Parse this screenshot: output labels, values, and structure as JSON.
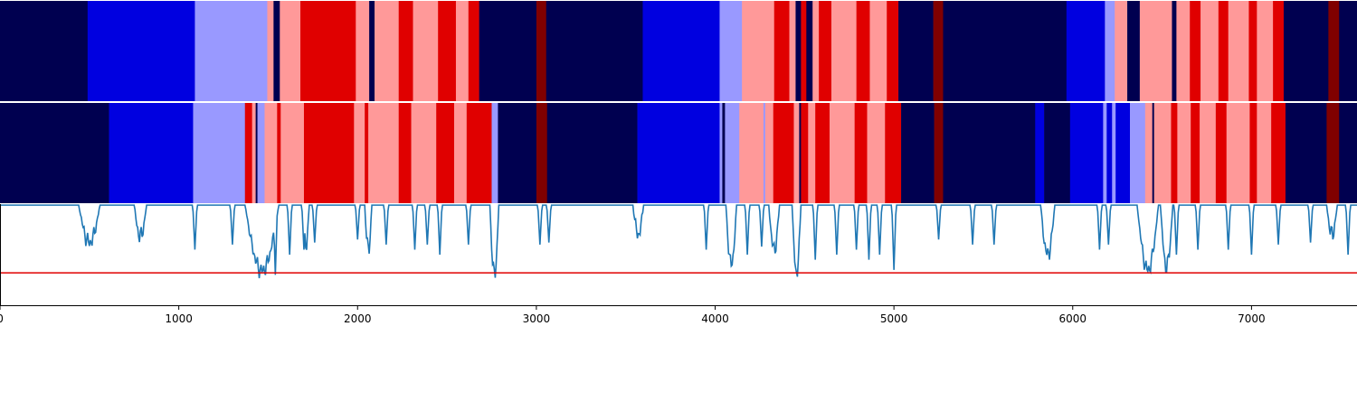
{
  "chart_data": {
    "type": "segmentation-comparison",
    "x_range": [
      0,
      7590
    ],
    "x_ticks": [
      0,
      1000,
      2000,
      3000,
      4000,
      5000,
      6000,
      7000
    ],
    "palette": {
      "0": "#000050",
      "1": "#0000e0",
      "2": "#9999ff",
      "3": "#ff9999",
      "4": "#e00000",
      "5": "#800000"
    },
    "panels": [
      {
        "segments": [
          [
            0,
            490,
            0
          ],
          [
            490,
            1090,
            1
          ],
          [
            1090,
            1495,
            2
          ],
          [
            1495,
            1530,
            3
          ],
          [
            1530,
            1565,
            0
          ],
          [
            1565,
            1680,
            3
          ],
          [
            1680,
            1990,
            4
          ],
          [
            1990,
            2065,
            3
          ],
          [
            2065,
            2095,
            0
          ],
          [
            2095,
            2230,
            3
          ],
          [
            2230,
            2310,
            4
          ],
          [
            2310,
            2450,
            3
          ],
          [
            2450,
            2550,
            4
          ],
          [
            2550,
            2620,
            3
          ],
          [
            2620,
            2680,
            4
          ],
          [
            2680,
            3000,
            0
          ],
          [
            3000,
            3055,
            5
          ],
          [
            3055,
            3595,
            0
          ],
          [
            3595,
            4025,
            1
          ],
          [
            4025,
            4150,
            2
          ],
          [
            4150,
            4330,
            3
          ],
          [
            4330,
            4415,
            4
          ],
          [
            4415,
            4450,
            3
          ],
          [
            4450,
            4480,
            0
          ],
          [
            4480,
            4510,
            4
          ],
          [
            4510,
            4545,
            0
          ],
          [
            4545,
            4580,
            3
          ],
          [
            4580,
            4650,
            4
          ],
          [
            4650,
            4790,
            3
          ],
          [
            4790,
            4865,
            4
          ],
          [
            4865,
            4960,
            3
          ],
          [
            4960,
            5025,
            4
          ],
          [
            5025,
            5220,
            0
          ],
          [
            5220,
            5275,
            5
          ],
          [
            5275,
            5965,
            0
          ],
          [
            5965,
            6180,
            1
          ],
          [
            6180,
            6235,
            2
          ],
          [
            6235,
            6305,
            3
          ],
          [
            6305,
            6375,
            0
          ],
          [
            6375,
            6555,
            3
          ],
          [
            6555,
            6580,
            0
          ],
          [
            6580,
            6655,
            3
          ],
          [
            6655,
            6715,
            4
          ],
          [
            6715,
            6815,
            3
          ],
          [
            6815,
            6870,
            4
          ],
          [
            6870,
            6985,
            3
          ],
          [
            6985,
            7030,
            4
          ],
          [
            7030,
            7120,
            3
          ],
          [
            7120,
            7180,
            4
          ],
          [
            7180,
            7430,
            0
          ],
          [
            7430,
            7490,
            5
          ],
          [
            7490,
            7590,
            0
          ]
        ]
      },
      {
        "segments": [
          [
            0,
            610,
            0
          ],
          [
            610,
            1080,
            1
          ],
          [
            1080,
            1370,
            2
          ],
          [
            1370,
            1410,
            4
          ],
          [
            1410,
            1430,
            3
          ],
          [
            1430,
            1440,
            0
          ],
          [
            1440,
            1480,
            2
          ],
          [
            1480,
            1550,
            3
          ],
          [
            1550,
            1570,
            4
          ],
          [
            1570,
            1700,
            3
          ],
          [
            1700,
            1980,
            4
          ],
          [
            1980,
            2040,
            3
          ],
          [
            2040,
            2060,
            4
          ],
          [
            2060,
            2230,
            3
          ],
          [
            2230,
            2300,
            4
          ],
          [
            2300,
            2440,
            3
          ],
          [
            2440,
            2540,
            4
          ],
          [
            2540,
            2610,
            3
          ],
          [
            2610,
            2750,
            4
          ],
          [
            2750,
            2785,
            2
          ],
          [
            2785,
            3000,
            0
          ],
          [
            3000,
            3060,
            5
          ],
          [
            3060,
            3565,
            0
          ],
          [
            3565,
            4025,
            1
          ],
          [
            4025,
            4040,
            2
          ],
          [
            4040,
            4055,
            0
          ],
          [
            4055,
            4135,
            2
          ],
          [
            4135,
            4270,
            3
          ],
          [
            4270,
            4280,
            2
          ],
          [
            4280,
            4325,
            3
          ],
          [
            4325,
            4440,
            4
          ],
          [
            4440,
            4470,
            3
          ],
          [
            4470,
            4480,
            0
          ],
          [
            4480,
            4520,
            4
          ],
          [
            4520,
            4560,
            3
          ],
          [
            4560,
            4640,
            4
          ],
          [
            4640,
            4780,
            3
          ],
          [
            4780,
            4850,
            4
          ],
          [
            4850,
            4950,
            3
          ],
          [
            4950,
            5040,
            4
          ],
          [
            5040,
            5225,
            0
          ],
          [
            5225,
            5275,
            5
          ],
          [
            5275,
            5790,
            0
          ],
          [
            5790,
            5840,
            1
          ],
          [
            5840,
            5985,
            0
          ],
          [
            5985,
            6170,
            1
          ],
          [
            6170,
            6190,
            2
          ],
          [
            6190,
            6220,
            1
          ],
          [
            6220,
            6240,
            2
          ],
          [
            6240,
            6320,
            1
          ],
          [
            6320,
            6405,
            2
          ],
          [
            6405,
            6445,
            3
          ],
          [
            6445,
            6455,
            0
          ],
          [
            6455,
            6550,
            3
          ],
          [
            6550,
            6585,
            4
          ],
          [
            6585,
            6660,
            3
          ],
          [
            6660,
            6710,
            4
          ],
          [
            6710,
            6800,
            3
          ],
          [
            6800,
            6860,
            4
          ],
          [
            6860,
            6990,
            3
          ],
          [
            6990,
            7030,
            4
          ],
          [
            7030,
            7110,
            3
          ],
          [
            7110,
            7190,
            4
          ],
          [
            7190,
            7420,
            0
          ],
          [
            7420,
            7490,
            5
          ],
          [
            7490,
            7590,
            0
          ]
        ]
      }
    ],
    "line_panel": {
      "color": "#1f77b4",
      "ylim": [
        0,
        1
      ],
      "threshold": 0.32,
      "threshold_color": "#e00000",
      "dip_regions": [
        [
          440,
          560,
          0.62
        ],
        [
          750,
          820,
          0.68
        ],
        [
          1370,
          1560,
          0.34
        ],
        [
          1690,
          1730,
          0.6
        ],
        [
          2040,
          2080,
          0.55
        ],
        [
          2740,
          2790,
          0.3
        ],
        [
          3540,
          3600,
          0.7
        ],
        [
          4060,
          4120,
          0.4
        ],
        [
          4300,
          4360,
          0.55
        ],
        [
          4430,
          4480,
          0.32
        ],
        [
          5820,
          5900,
          0.5
        ],
        [
          6360,
          6480,
          0.35
        ],
        [
          6490,
          6560,
          0.38
        ],
        [
          7420,
          7480,
          0.7
        ]
      ],
      "spikes": [
        [
          1090,
          0.55
        ],
        [
          1300,
          0.6
        ],
        [
          1460,
          0.4
        ],
        [
          1540,
          0.3
        ],
        [
          1620,
          0.5
        ],
        [
          1700,
          0.55
        ],
        [
          1760,
          0.62
        ],
        [
          2000,
          0.65
        ],
        [
          2160,
          0.6
        ],
        [
          2320,
          0.55
        ],
        [
          2390,
          0.6
        ],
        [
          2460,
          0.5
        ],
        [
          2620,
          0.6
        ],
        [
          3020,
          0.6
        ],
        [
          3070,
          0.62
        ],
        [
          3950,
          0.55
        ],
        [
          4180,
          0.5
        ],
        [
          4260,
          0.58
        ],
        [
          4560,
          0.45
        ],
        [
          4680,
          0.5
        ],
        [
          4790,
          0.55
        ],
        [
          4860,
          0.45
        ],
        [
          4920,
          0.5
        ],
        [
          5000,
          0.35
        ],
        [
          5250,
          0.65
        ],
        [
          5440,
          0.6
        ],
        [
          5560,
          0.6
        ],
        [
          6150,
          0.55
        ],
        [
          6200,
          0.6
        ],
        [
          6580,
          0.5
        ],
        [
          6700,
          0.55
        ],
        [
          6870,
          0.55
        ],
        [
          7000,
          0.5
        ],
        [
          7150,
          0.6
        ],
        [
          7330,
          0.62
        ],
        [
          7540,
          0.5
        ]
      ]
    }
  }
}
